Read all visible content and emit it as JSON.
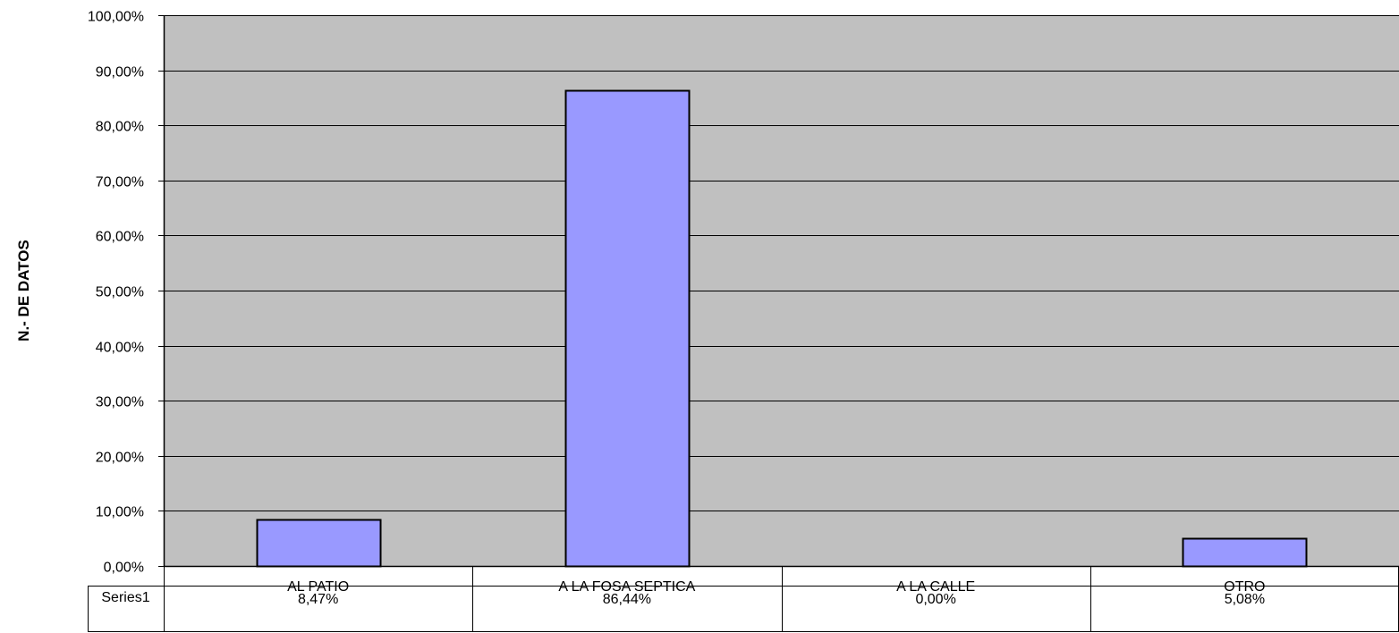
{
  "chart_data": {
    "type": "bar",
    "categories": [
      "AL PATIO",
      "A LA FOSA SEPTICA",
      "A LA CALLE",
      "OTRO"
    ],
    "series": [
      {
        "name": "Series1",
        "values": [
          8.47,
          86.44,
          0.0,
          5.08
        ],
        "value_labels": [
          "8,47%",
          "86,44%",
          "0,00%",
          "5,08%"
        ]
      }
    ],
    "ylabel": "N.- DE DATOS",
    "xlabel": "",
    "title": "",
    "ylim": [
      0,
      100
    ],
    "yticks": [
      0,
      10,
      20,
      30,
      40,
      50,
      60,
      70,
      80,
      90,
      100
    ],
    "ytick_labels": [
      "0,00%",
      "10,00%",
      "20,00%",
      "30,00%",
      "40,00%",
      "50,00%",
      "60,00%",
      "70,00%",
      "80,00%",
      "90,00%",
      "100,00%"
    ],
    "grid": true,
    "data_table": true,
    "legend": "none",
    "colors": {
      "plot_background": "#c0c0c0",
      "bar_fill": "#9999ff",
      "bar_stroke": "#000000",
      "gridline": "#000000"
    }
  }
}
